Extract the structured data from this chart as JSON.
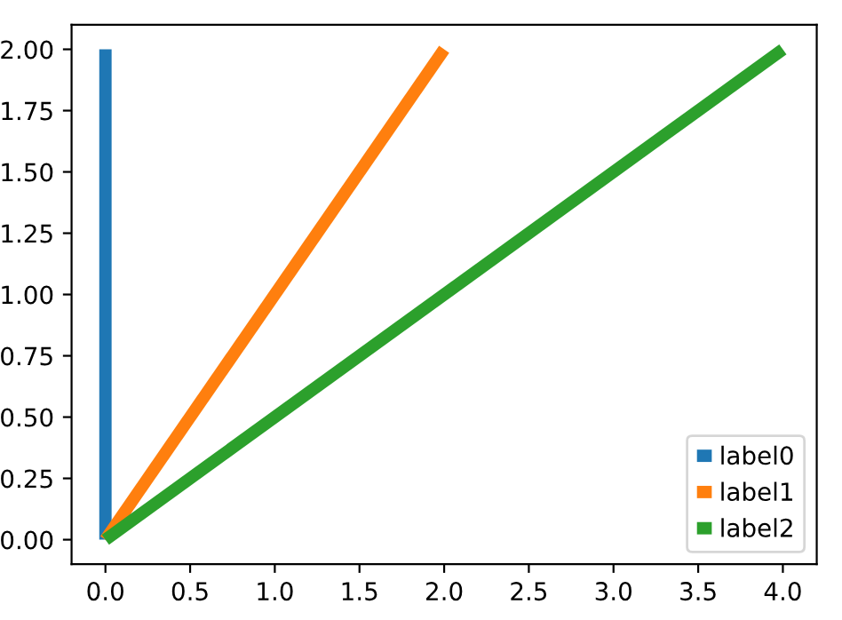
{
  "chart_data": {
    "type": "line",
    "series": [
      {
        "name": "label0",
        "color": "#1f77b4",
        "x": [
          0,
          0
        ],
        "values": [
          0,
          2
        ]
      },
      {
        "name": "label1",
        "color": "#ff7f0e",
        "x": [
          0,
          2
        ],
        "values": [
          0,
          2
        ]
      },
      {
        "name": "label2",
        "color": "#2ca02c",
        "x": [
          0,
          4
        ],
        "values": [
          0,
          2
        ]
      }
    ],
    "xlim": [
      -0.2,
      4.2
    ],
    "ylim": [
      -0.1,
      2.1
    ],
    "xticks": [
      {
        "value": 0,
        "label": "0.0"
      },
      {
        "value": 0.5,
        "label": "0.5"
      },
      {
        "value": 1,
        "label": "1.0"
      },
      {
        "value": 1.5,
        "label": "1.5"
      },
      {
        "value": 2,
        "label": "2.0"
      },
      {
        "value": 2.5,
        "label": "2.5"
      },
      {
        "value": 3,
        "label": "3.0"
      },
      {
        "value": 3.5,
        "label": "3.5"
      },
      {
        "value": 4,
        "label": "4.0"
      }
    ],
    "yticks": [
      {
        "value": 0,
        "label": "0.00"
      },
      {
        "value": 0.25,
        "label": "0.25"
      },
      {
        "value": 0.5,
        "label": "0.50"
      },
      {
        "value": 0.75,
        "label": "0.75"
      },
      {
        "value": 1,
        "label": "1.00"
      },
      {
        "value": 1.25,
        "label": "1.25"
      },
      {
        "value": 1.5,
        "label": "1.50"
      },
      {
        "value": 1.75,
        "label": "1.75"
      },
      {
        "value": 2,
        "label": "2.00"
      }
    ],
    "legend": "bottom right",
    "grid": false,
    "marker": "none",
    "line_style": "solid"
  }
}
